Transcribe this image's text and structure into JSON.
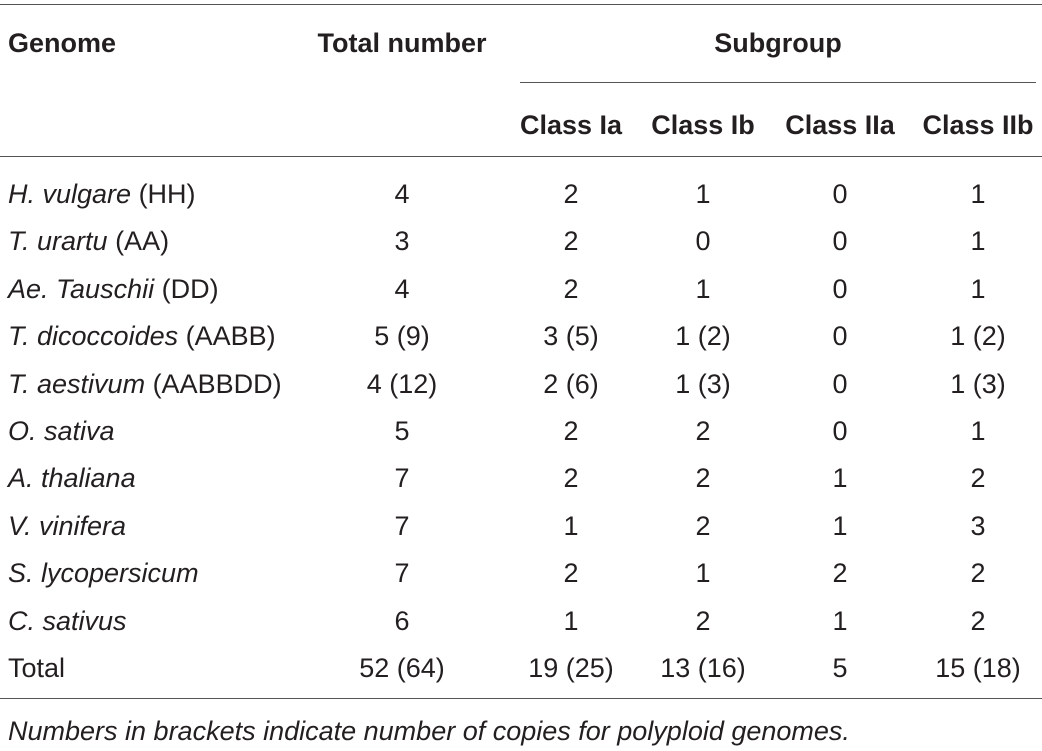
{
  "table": {
    "headers": {
      "genome": "Genome",
      "total": "Total number",
      "subgroup": "Subgroup",
      "classes": [
        "Class Ia",
        "Class Ib",
        "Class IIa",
        "Class IIb"
      ]
    },
    "rows": [
      {
        "species": "H. vulgare",
        "genome": " (HH)",
        "values": [
          "4",
          "2",
          "1",
          "0",
          "1"
        ]
      },
      {
        "species": "T. urartu",
        "genome": " (AA)",
        "values": [
          "3",
          "2",
          "0",
          "0",
          "1"
        ]
      },
      {
        "species": "Ae. Tauschii",
        "genome": " (DD)",
        "values": [
          "4",
          "2",
          "1",
          "0",
          "1"
        ]
      },
      {
        "species": "T. dicoccoides",
        "genome": " (AABB)",
        "values": [
          "5 (9)",
          "3 (5)",
          "1 (2)",
          "0",
          "1 (2)"
        ]
      },
      {
        "species": "T. aestivum",
        "genome": " (AABBDD)",
        "values": [
          "4 (12)",
          "2 (6)",
          "1 (3)",
          "0",
          "1 (3)"
        ]
      },
      {
        "species": "O. sativa",
        "genome": "",
        "values": [
          "5",
          "2",
          "2",
          "0",
          "1"
        ]
      },
      {
        "species": "A. thaliana",
        "genome": "",
        "values": [
          "7",
          "2",
          "2",
          "1",
          "2"
        ]
      },
      {
        "species": "V. vinifera",
        "genome": "",
        "values": [
          "7",
          "1",
          "2",
          "1",
          "3"
        ]
      },
      {
        "species": "S. lycopersicum",
        "genome": "",
        "values": [
          "7",
          "2",
          "1",
          "2",
          "2"
        ]
      },
      {
        "species": "C. sativus",
        "genome": "",
        "values": [
          "6",
          "1",
          "2",
          "1",
          "2"
        ]
      }
    ],
    "total_row": {
      "label": "Total",
      "values": [
        "52 (64)",
        "19 (25)",
        "13 (16)",
        "5",
        "15 (18)"
      ]
    }
  },
  "footnote": "Numbers in brackets indicate number of copies for polyploid genomes."
}
